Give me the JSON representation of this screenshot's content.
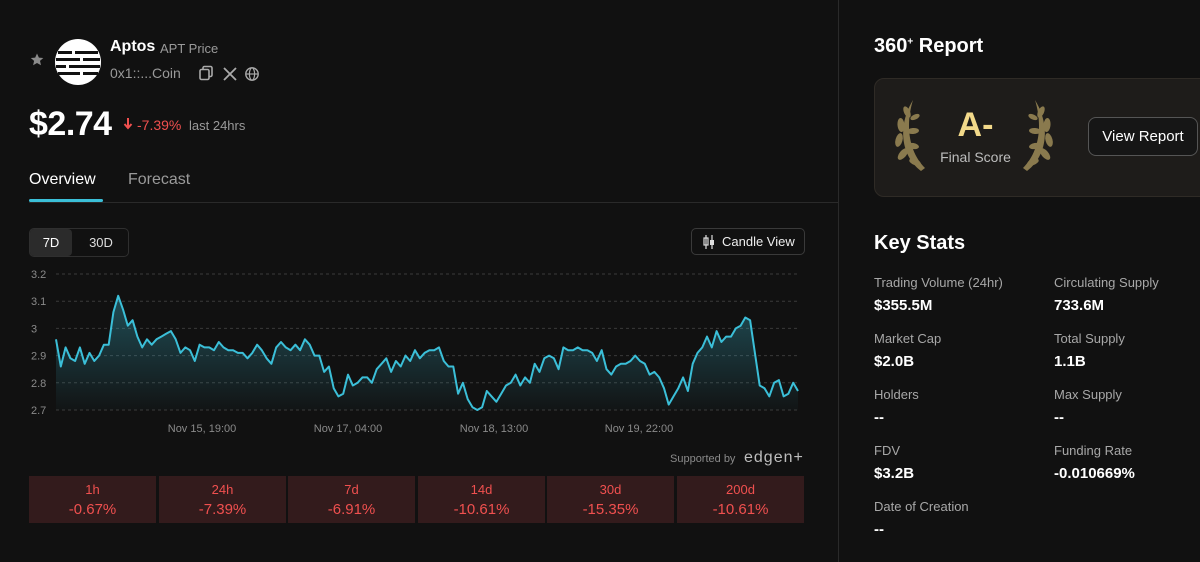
{
  "coin": {
    "name": "Aptos",
    "subtitle": "APT Price",
    "address": "0x1::...Coin",
    "price": "$2.74",
    "change": "-7.39%",
    "change_note": "last 24hrs"
  },
  "tabs": [
    {
      "label": "Overview",
      "active": true
    },
    {
      "label": "Forecast",
      "active": false
    }
  ],
  "range_buttons": [
    {
      "label": "7D",
      "active": true
    },
    {
      "label": "30D",
      "active": false
    }
  ],
  "candle_view_label": "Candle View",
  "supported_by": "Supported by",
  "partner": "edgen+",
  "period_changes": [
    {
      "label": "1h",
      "value": "-0.67%"
    },
    {
      "label": "24h",
      "value": "-7.39%"
    },
    {
      "label": "7d",
      "value": "-6.91%"
    },
    {
      "label": "14d",
      "value": "-10.61%"
    },
    {
      "label": "30d",
      "value": "-15.35%"
    },
    {
      "label": "200d",
      "value": "-10.61%"
    }
  ],
  "report": {
    "title": "360",
    "title_sup": "+",
    "title_suffix": " Report",
    "grade": "A-",
    "grade_label": "Final Score",
    "button_label": "View Report"
  },
  "key_stats": {
    "title": "Key Stats",
    "items": [
      {
        "label": "Trading Volume (24hr)",
        "value": "$355.5M"
      },
      {
        "label": "Circulating Supply",
        "value": "733.6M"
      },
      {
        "label": "Market Cap",
        "value": "$2.0B"
      },
      {
        "label": "Total Supply",
        "value": "1.1B"
      },
      {
        "label": "Holders",
        "value": "--"
      },
      {
        "label": "Max Supply",
        "value": "--"
      },
      {
        "label": "FDV",
        "value": "$3.2B"
      },
      {
        "label": "Funding Rate",
        "value": "-0.010669%"
      },
      {
        "label": "Date of Creation",
        "value": "--"
      }
    ]
  },
  "colors": {
    "line": "#3bbfd8",
    "negative": "#f0504f",
    "grade": "#f2d98a"
  },
  "chart_data": {
    "type": "area",
    "title": "",
    "xlabel": "",
    "ylabel": "",
    "ylim": [
      2.7,
      3.2
    ],
    "y_ticks": [
      "3.2",
      "3.1",
      "3",
      "2.9",
      "2.8",
      "2.7"
    ],
    "x_tick_labels": [
      "Nov 15, 19:00",
      "Nov 17, 04:00",
      "Nov 18, 13:00",
      "Nov 19, 22:00"
    ],
    "grid": true,
    "series": [
      {
        "values": [
          2.96,
          2.86,
          2.93,
          2.89,
          2.88,
          2.93,
          2.87,
          2.91,
          2.88,
          2.9,
          2.94,
          2.94,
          3.06,
          3.12,
          3.07,
          3.01,
          3.03,
          2.97,
          2.93,
          2.96,
          2.94,
          2.96,
          2.97,
          2.98,
          2.99,
          2.96,
          2.91,
          2.93,
          2.92,
          2.88,
          2.94,
          2.93,
          2.93,
          2.92,
          2.95,
          2.93,
          2.92,
          2.92,
          2.91,
          2.91,
          2.89,
          2.91,
          2.94,
          2.92,
          2.89,
          2.87,
          2.93,
          2.95,
          2.93,
          2.92,
          2.94,
          2.92,
          2.96,
          2.94,
          2.9,
          2.9,
          2.84,
          2.86,
          2.78,
          2.75,
          2.76,
          2.83,
          2.79,
          2.8,
          2.82,
          2.82,
          2.8,
          2.85,
          2.87,
          2.89,
          2.84,
          2.88,
          2.86,
          2.9,
          2.88,
          2.92,
          2.89,
          2.91,
          2.92,
          2.92,
          2.93,
          2.88,
          2.86,
          2.86,
          2.76,
          2.8,
          2.74,
          2.71,
          2.7,
          2.71,
          2.77,
          2.75,
          2.73,
          2.76,
          2.79,
          2.8,
          2.83,
          2.79,
          2.82,
          2.8,
          2.87,
          2.84,
          2.89,
          2.9,
          2.89,
          2.85,
          2.93,
          2.92,
          2.92,
          2.93,
          2.92,
          2.92,
          2.91,
          2.88,
          2.92,
          2.85,
          2.83,
          2.86,
          2.87,
          2.87,
          2.88,
          2.9,
          2.88,
          2.87,
          2.83,
          2.84,
          2.82,
          2.78,
          2.72,
          2.75,
          2.78,
          2.82,
          2.77,
          2.87,
          2.91,
          2.93,
          2.97,
          2.93,
          2.99,
          2.95,
          2.97,
          2.97,
          3.0,
          3.01,
          3.04,
          3.03,
          2.91,
          2.79,
          2.78,
          2.75,
          2.8,
          2.81,
          2.75,
          2.76,
          2.8,
          2.77
        ]
      }
    ]
  }
}
